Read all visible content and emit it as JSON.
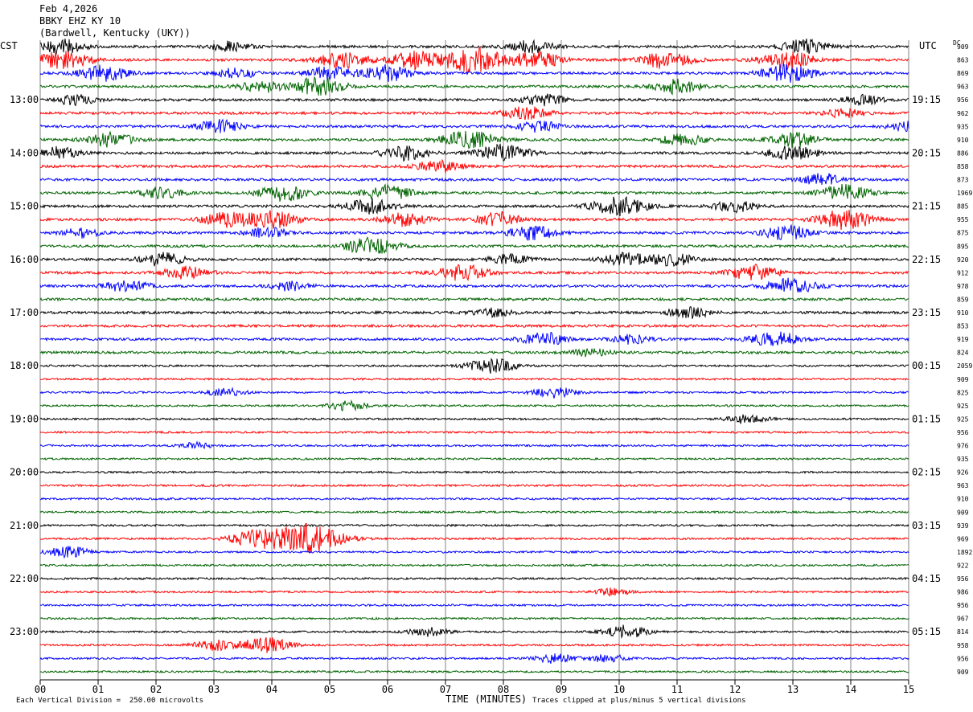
{
  "header": {
    "date": "Feb 4,2026",
    "station": "BBKY EHZ KY 10",
    "location": "(Bardwell, Kentucky (UKY))"
  },
  "labels": {
    "left_tz": "CST",
    "right_tz": "UTC",
    "dc": "DC"
  },
  "footer": {
    "division": "Each Vertical Division =  250.00 microvolts",
    "xlabel": "TIME (MINUTES)",
    "clip_note": "Traces clipped at plus/minus 5 vertical divisions"
  },
  "colors": {
    "trace_cycle": [
      "#000000",
      "#ff0000",
      "#0000ff",
      "#006400"
    ],
    "grid": "#808080"
  },
  "chart_data": {
    "type": "line",
    "title": "Feb 4,2026",
    "xlabel": "TIME (MINUTES)",
    "xlim": [
      0,
      15
    ],
    "x_ticks": [
      "00",
      "01",
      "02",
      "03",
      "04",
      "05",
      "06",
      "07",
      "08",
      "09",
      "10",
      "11",
      "12",
      "13",
      "14",
      "15"
    ],
    "left_time_labels": [
      "13:00",
      "14:00",
      "15:00",
      "16:00",
      "17:00",
      "18:00",
      "19:00",
      "20:00",
      "21:00",
      "22:00",
      "23:00"
    ],
    "right_time_labels": [
      "19:15",
      "20:15",
      "21:15",
      "22:15",
      "23:15",
      "00:15",
      "01:15",
      "02:15",
      "03:15",
      "04:15",
      "05:15"
    ],
    "dc_offsets": [
      "909",
      "863",
      "869",
      "963",
      "956",
      "962",
      "935",
      "910",
      "886",
      "858",
      "873",
      "1969",
      "885",
      "955",
      "875",
      "895",
      "920",
      "912",
      "978",
      "859",
      "910",
      "853",
      "919",
      "824",
      "2059",
      "909",
      "825",
      "925",
      "925",
      "956",
      "976",
      "935",
      "926",
      "963",
      "910",
      "909",
      "939",
      "969",
      "1892",
      "922",
      "956",
      "986",
      "956",
      "967",
      "814",
      "958",
      "956",
      "909"
    ],
    "trace_count": 48,
    "minutes_per_trace": 15,
    "events": [
      {
        "trace": 0,
        "minute": 0.4,
        "amp": 1.4
      },
      {
        "trace": 0,
        "minute": 3.3,
        "amp": 1.0
      },
      {
        "trace": 0,
        "minute": 8.5,
        "amp": 1.3
      },
      {
        "trace": 0,
        "minute": 13.2,
        "amp": 1.4
      },
      {
        "trace": 1,
        "minute": 0.4,
        "amp": 1.8
      },
      {
        "trace": 1,
        "minute": 5.2,
        "amp": 1.6
      },
      {
        "trace": 1,
        "minute": 6.5,
        "amp": 1.8
      },
      {
        "trace": 1,
        "minute": 7.5,
        "amp": 2.5
      },
      {
        "trace": 1,
        "minute": 8.6,
        "amp": 1.6
      },
      {
        "trace": 1,
        "minute": 10.8,
        "amp": 1.8
      },
      {
        "trace": 1,
        "minute": 12.9,
        "amp": 1.8
      },
      {
        "trace": 2,
        "minute": 1.1,
        "amp": 1.6
      },
      {
        "trace": 2,
        "minute": 3.4,
        "amp": 1.0
      },
      {
        "trace": 2,
        "minute": 5.0,
        "amp": 1.3
      },
      {
        "trace": 2,
        "minute": 6.0,
        "amp": 1.6
      },
      {
        "trace": 2,
        "minute": 12.9,
        "amp": 1.8
      },
      {
        "trace": 3,
        "minute": 3.8,
        "amp": 1.2
      },
      {
        "trace": 3,
        "minute": 4.8,
        "amp": 1.8
      },
      {
        "trace": 3,
        "minute": 11.0,
        "amp": 1.4
      },
      {
        "trace": 4,
        "minute": 0.6,
        "amp": 1.0
      },
      {
        "trace": 4,
        "minute": 8.7,
        "amp": 1.1
      },
      {
        "trace": 4,
        "minute": 14.2,
        "amp": 0.9
      },
      {
        "trace": 5,
        "minute": 8.4,
        "amp": 1.3
      },
      {
        "trace": 5,
        "minute": 13.9,
        "amp": 0.9
      },
      {
        "trace": 6,
        "minute": 3.1,
        "amp": 1.3
      },
      {
        "trace": 6,
        "minute": 8.6,
        "amp": 1.1
      },
      {
        "trace": 6,
        "minute": 15.0,
        "amp": 0.9
      },
      {
        "trace": 7,
        "minute": 1.2,
        "amp": 1.4
      },
      {
        "trace": 7,
        "minute": 7.4,
        "amp": 1.9
      },
      {
        "trace": 7,
        "minute": 11.1,
        "amp": 1.2
      },
      {
        "trace": 7,
        "minute": 13.0,
        "amp": 1.5
      },
      {
        "trace": 8,
        "minute": 0.3,
        "amp": 1.2
      },
      {
        "trace": 8,
        "minute": 6.3,
        "amp": 1.4
      },
      {
        "trace": 8,
        "minute": 8.0,
        "amp": 1.7
      },
      {
        "trace": 8,
        "minute": 13.0,
        "amp": 1.5
      },
      {
        "trace": 9,
        "minute": 6.9,
        "amp": 1.3
      },
      {
        "trace": 10,
        "minute": 13.5,
        "amp": 1.2
      },
      {
        "trace": 11,
        "minute": 2.1,
        "amp": 1.1
      },
      {
        "trace": 11,
        "minute": 4.2,
        "amp": 1.6
      },
      {
        "trace": 11,
        "minute": 6.0,
        "amp": 1.6
      },
      {
        "trace": 11,
        "minute": 13.9,
        "amp": 1.6
      },
      {
        "trace": 12,
        "minute": 5.7,
        "amp": 1.5
      },
      {
        "trace": 12,
        "minute": 10.0,
        "amp": 1.9
      },
      {
        "trace": 12,
        "minute": 12.0,
        "amp": 1.1
      },
      {
        "trace": 13,
        "minute": 3.2,
        "amp": 1.4
      },
      {
        "trace": 13,
        "minute": 4.0,
        "amp": 1.8
      },
      {
        "trace": 13,
        "minute": 6.3,
        "amp": 1.3
      },
      {
        "trace": 13,
        "minute": 7.9,
        "amp": 1.4
      },
      {
        "trace": 13,
        "minute": 13.9,
        "amp": 2.0
      },
      {
        "trace": 14,
        "minute": 0.7,
        "amp": 0.9
      },
      {
        "trace": 14,
        "minute": 3.9,
        "amp": 1.1
      },
      {
        "trace": 14,
        "minute": 8.5,
        "amp": 1.4
      },
      {
        "trace": 14,
        "minute": 12.9,
        "amp": 1.5
      },
      {
        "trace": 15,
        "minute": 5.7,
        "amp": 1.7
      },
      {
        "trace": 16,
        "minute": 2.1,
        "amp": 1.3
      },
      {
        "trace": 16,
        "minute": 8.1,
        "amp": 1.0
      },
      {
        "trace": 16,
        "minute": 10.1,
        "amp": 1.3
      },
      {
        "trace": 16,
        "minute": 10.9,
        "amp": 1.3
      },
      {
        "trace": 17,
        "minute": 2.5,
        "amp": 1.4
      },
      {
        "trace": 17,
        "minute": 7.3,
        "amp": 1.6
      },
      {
        "trace": 17,
        "minute": 12.3,
        "amp": 1.6
      },
      {
        "trace": 18,
        "minute": 1.5,
        "amp": 1.2
      },
      {
        "trace": 18,
        "minute": 4.3,
        "amp": 0.9
      },
      {
        "trace": 18,
        "minute": 13.0,
        "amp": 1.6
      },
      {
        "trace": 20,
        "minute": 7.8,
        "amp": 0.8
      },
      {
        "trace": 20,
        "minute": 11.2,
        "amp": 1.1
      },
      {
        "trace": 22,
        "minute": 8.7,
        "amp": 1.3
      },
      {
        "trace": 22,
        "minute": 10.2,
        "amp": 0.9
      },
      {
        "trace": 22,
        "minute": 12.7,
        "amp": 1.5
      },
      {
        "trace": 23,
        "minute": 9.5,
        "amp": 0.8
      },
      {
        "trace": 24,
        "minute": 7.8,
        "amp": 1.5
      },
      {
        "trace": 26,
        "minute": 3.2,
        "amp": 0.8
      },
      {
        "trace": 26,
        "minute": 8.9,
        "amp": 1.1
      },
      {
        "trace": 27,
        "minute": 5.3,
        "amp": 0.9
      },
      {
        "trace": 28,
        "minute": 12.2,
        "amp": 0.9
      },
      {
        "trace": 30,
        "minute": 2.7,
        "amp": 0.6
      },
      {
        "trace": 37,
        "minute": 4.6,
        "amp": 3.0
      },
      {
        "trace": 37,
        "minute": 3.7,
        "amp": 1.6
      },
      {
        "trace": 38,
        "minute": 0.5,
        "amp": 1.1
      },
      {
        "trace": 41,
        "minute": 9.9,
        "amp": 0.7
      },
      {
        "trace": 44,
        "minute": 6.7,
        "amp": 0.9
      },
      {
        "trace": 44,
        "minute": 10.1,
        "amp": 1.3
      },
      {
        "trace": 45,
        "minute": 3.9,
        "amp": 1.6
      },
      {
        "trace": 45,
        "minute": 3.0,
        "amp": 1.0
      },
      {
        "trace": 46,
        "minute": 8.9,
        "amp": 1.0
      },
      {
        "trace": 46,
        "minute": 9.8,
        "amp": 0.8
      }
    ]
  }
}
